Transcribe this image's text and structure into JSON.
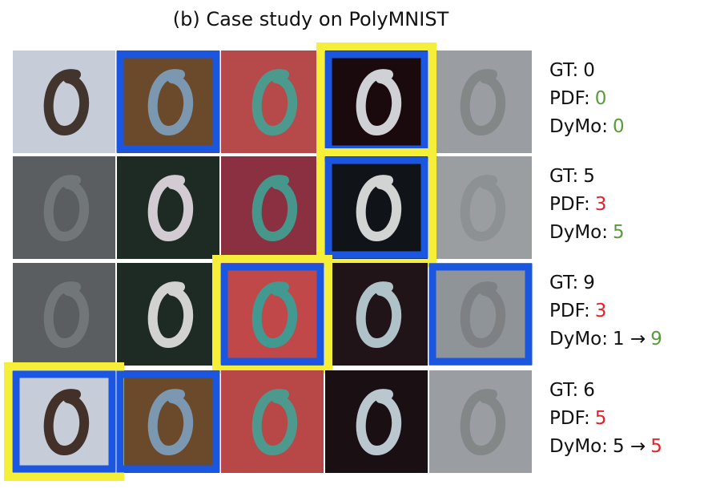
{
  "title": "(b) Case study on PolyMNIST",
  "rows": [
    {
      "lines": [
        {
          "label": "GT:",
          "value": "0"
        },
        {
          "label": "PDF:",
          "value": "0",
          "color": "#5a9a3c"
        },
        {
          "label": "DyMo:",
          "value": "0",
          "color": "#5a9a3c"
        }
      ]
    },
    {
      "lines": [
        {
          "label": "GT:",
          "value": "5"
        },
        {
          "label": "PDF:",
          "value": "3",
          "color": "#e8202a"
        },
        {
          "label": "DyMo:",
          "value": "5",
          "color": "#5a9a3c"
        }
      ]
    },
    {
      "lines": [
        {
          "label": "GT:",
          "value": "9"
        },
        {
          "label": "PDF:",
          "value": "3",
          "color": "#e8202a"
        },
        {
          "label": "DyMo:",
          "prefix": "1 →",
          "value": "9",
          "color": "#5a9a3c"
        }
      ]
    },
    {
      "lines": [
        {
          "label": "GT:",
          "value": "6"
        },
        {
          "label": "PDF:",
          "value": "5",
          "color": "#e8202a"
        },
        {
          "label": "DyMo:",
          "prefix": "5 →",
          "value": "5",
          "color": "#e8202a"
        }
      ]
    }
  ]
}
